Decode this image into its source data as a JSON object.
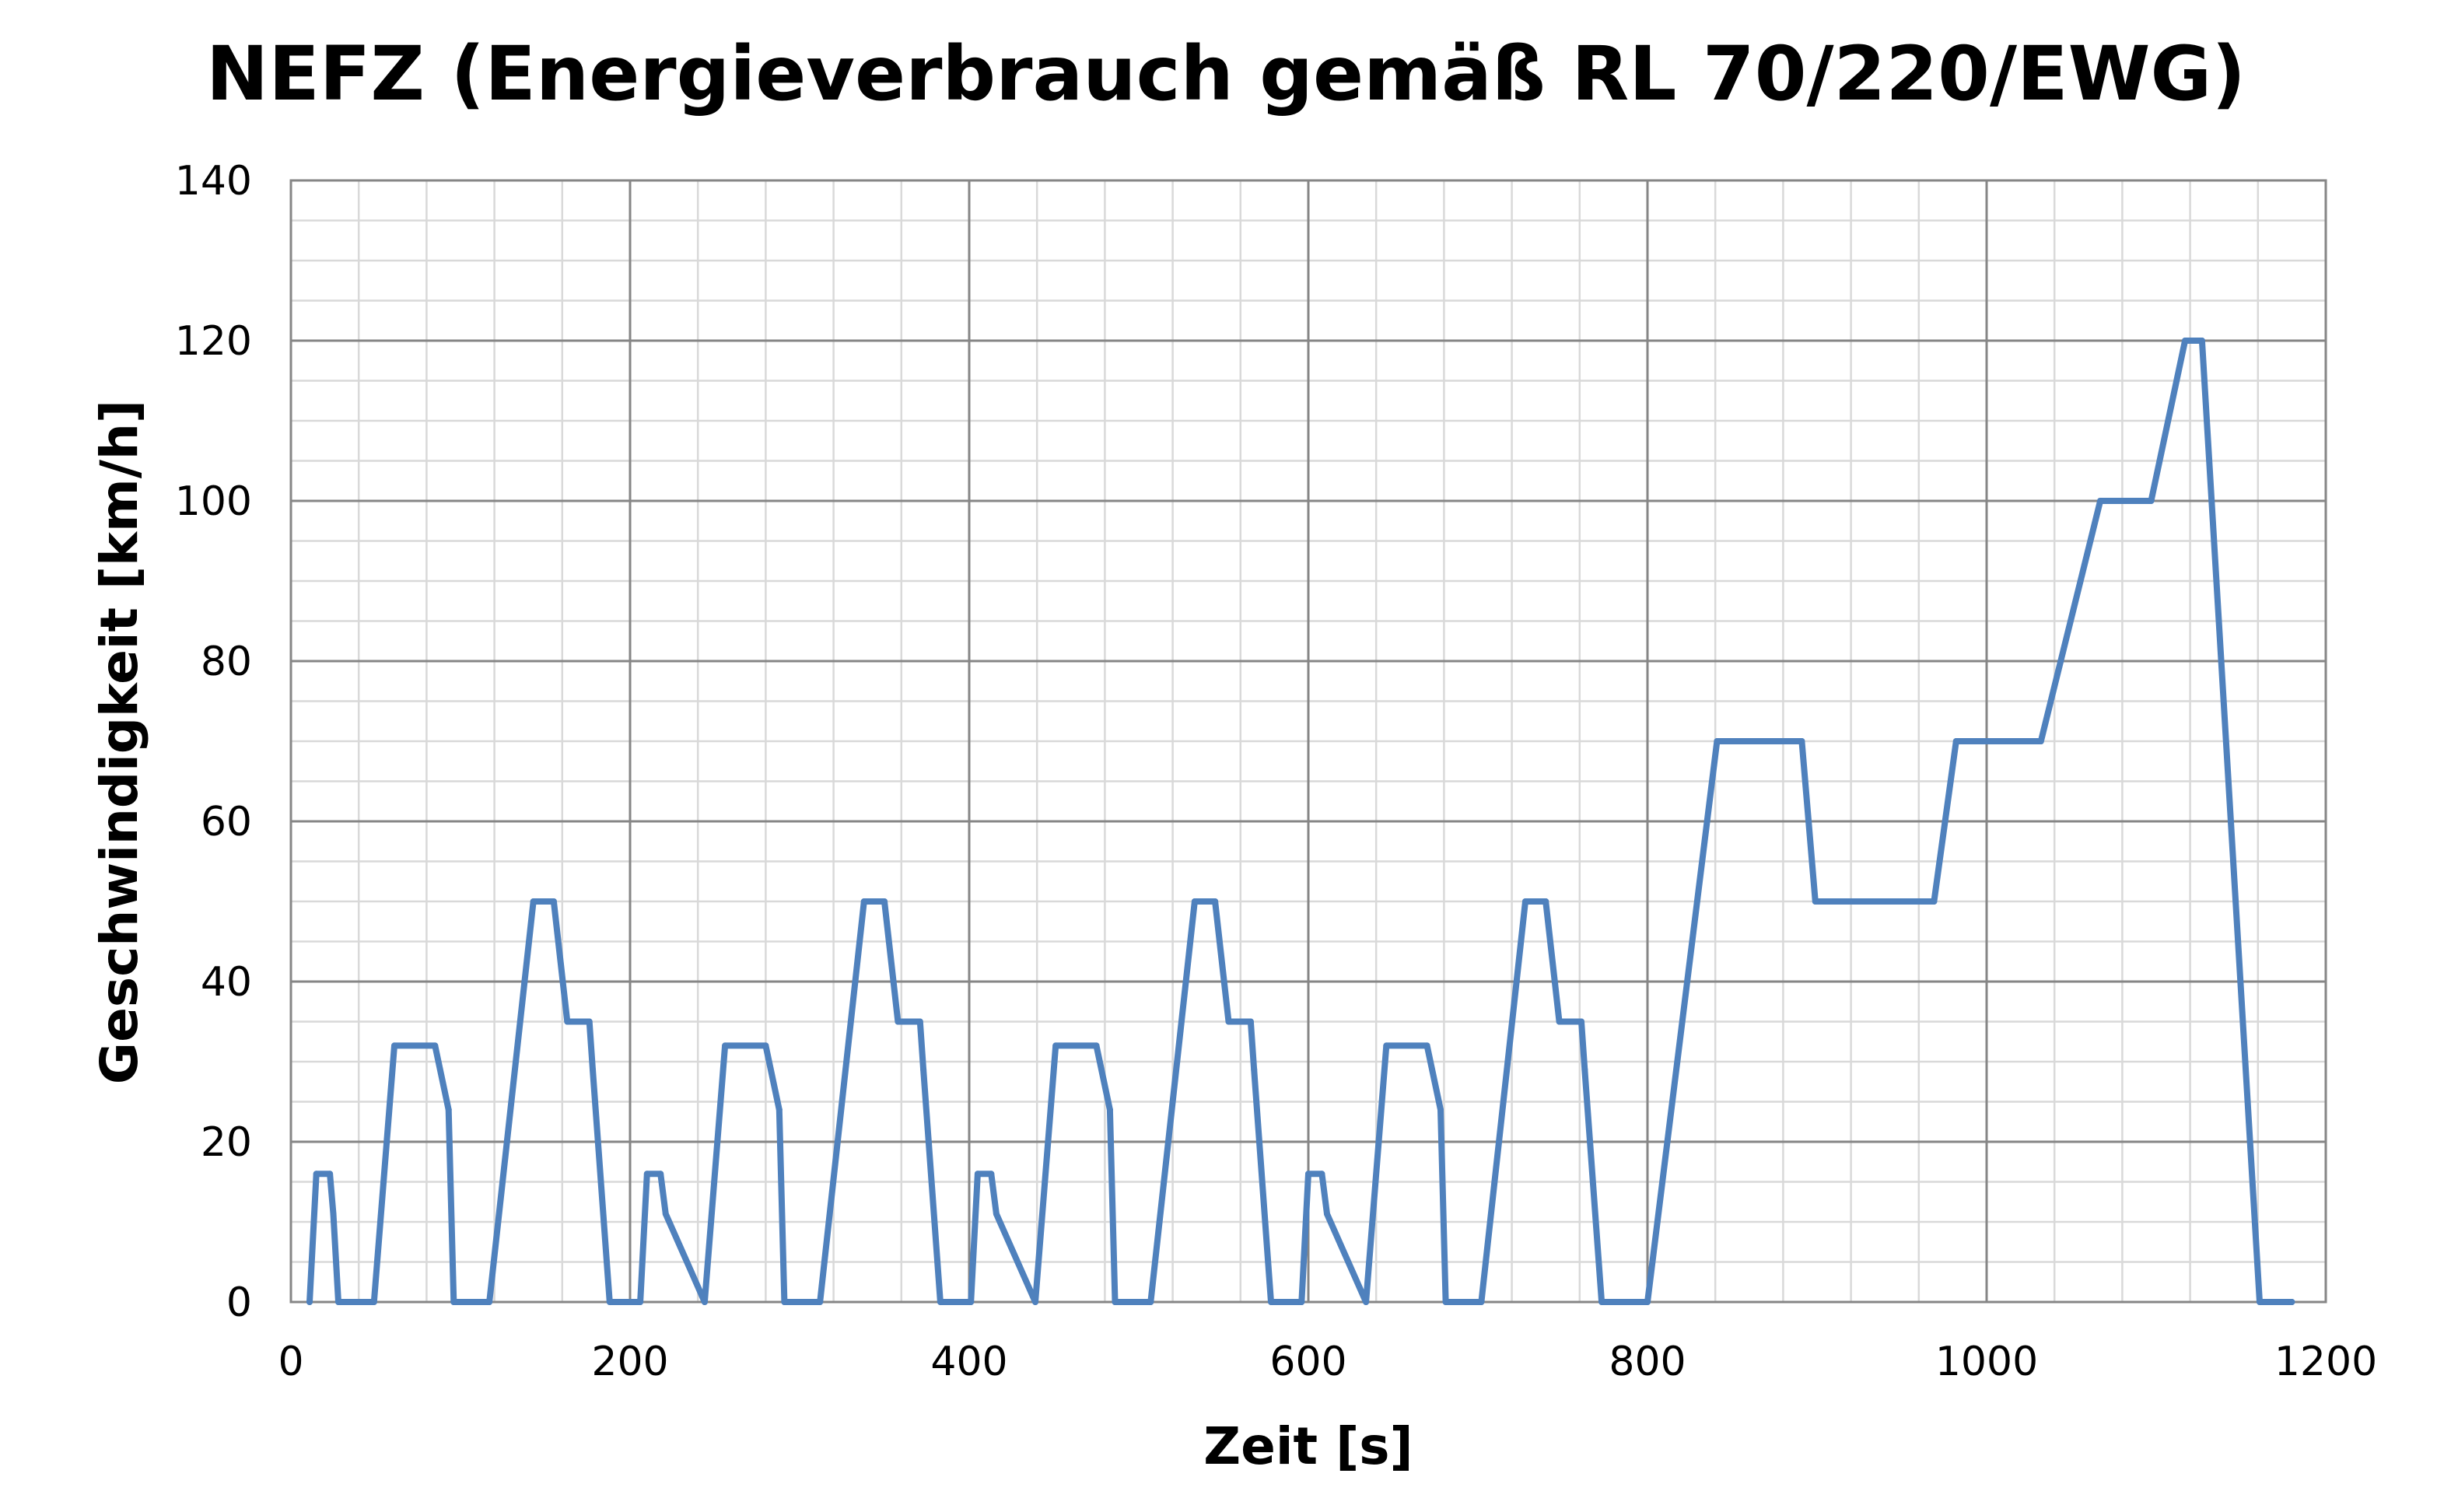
{
  "chart_data": {
    "type": "line",
    "title": "NEFZ (Energieverbrauch gemäß RL 70/220/EWG)",
    "xlabel": "Zeit [s]",
    "ylabel": "Geschwindigkeit [km/h]",
    "xlim": [
      0,
      1200
    ],
    "ylim": [
      0,
      140
    ],
    "x_ticks": [
      "0",
      "200",
      "400",
      "600",
      "800",
      "1000",
      "1200"
    ],
    "y_ticks": [
      "0",
      "20",
      "40",
      "60",
      "80",
      "100",
      "120",
      "140"
    ],
    "x_tick_values": [
      0,
      200,
      400,
      600,
      800,
      1000,
      1200
    ],
    "y_tick_values": [
      0,
      20,
      40,
      60,
      80,
      100,
      120,
      140
    ],
    "x_minor_step": 40,
    "y_minor_step": 5,
    "grid": true,
    "legend": "none",
    "series": [
      {
        "color": "#4F81BD",
        "x": [
          11,
          15,
          23,
          25,
          28,
          49,
          61,
          85,
          93,
          96,
          117,
          143,
          155,
          163,
          176,
          178,
          188,
          195,
          206,
          210,
          218,
          221,
          244,
          256,
          280,
          288,
          291,
          312,
          338,
          350,
          358,
          371,
          373,
          383,
          401,
          405,
          413,
          416,
          439,
          451,
          475,
          483,
          486,
          507,
          533,
          545,
          553,
          566,
          568,
          578,
          596,
          600,
          608,
          611,
          634,
          646,
          670,
          678,
          681,
          702,
          728,
          740,
          748,
          761,
          763,
          773,
          800,
          841,
          891,
          899,
          969,
          982,
          1032,
          1067,
          1097,
          1117,
          1127,
          1161,
          1180
        ],
        "y": [
          0,
          16,
          16,
          11,
          0,
          0,
          32,
          32,
          24,
          0,
          0,
          50,
          50,
          35,
          35,
          29,
          0,
          0,
          0,
          16,
          16,
          11,
          0,
          32,
          32,
          24,
          0,
          0,
          50,
          50,
          35,
          35,
          29,
          0,
          0,
          16,
          16,
          11,
          0,
          32,
          32,
          24,
          0,
          0,
          50,
          50,
          35,
          35,
          29,
          0,
          0,
          16,
          16,
          11,
          0,
          32,
          32,
          24,
          0,
          0,
          50,
          50,
          35,
          35,
          29,
          0,
          0,
          70,
          70,
          50,
          50,
          70,
          70,
          100,
          100,
          120,
          120,
          0,
          0
        ]
      }
    ]
  }
}
